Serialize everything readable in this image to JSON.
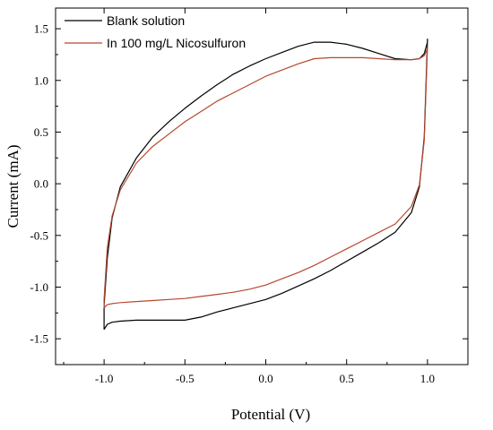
{
  "chart_data": {
    "type": "line",
    "title": "",
    "xlabel": "Potential (V)",
    "ylabel": "Current (mA)",
    "xlim": [
      -1.3,
      1.25
    ],
    "ylim": [
      -1.75,
      1.7
    ],
    "xticks": [
      -1.0,
      -0.5,
      0.0,
      0.5,
      1.0
    ],
    "xtick_labels": [
      "-1.0",
      "-0.5",
      "0.0",
      "0.5",
      "1.0"
    ],
    "yticks": [
      -1.5,
      -1.0,
      -0.5,
      0.0,
      0.5,
      1.0,
      1.5
    ],
    "ytick_labels": [
      "-1.5",
      "-1.0",
      "-0.5",
      "0.0",
      "0.5",
      "1.0",
      "1.5"
    ],
    "grid": false,
    "legend_position": "top-left",
    "series": [
      {
        "name": "Blank solution",
        "color": "#000000",
        "x": [
          -1.0,
          -0.98,
          -0.95,
          -0.9,
          -0.8,
          -0.7,
          -0.6,
          -0.5,
          -0.4,
          -0.3,
          -0.2,
          -0.1,
          0.0,
          0.1,
          0.2,
          0.3,
          0.4,
          0.5,
          0.6,
          0.7,
          0.8,
          0.9,
          0.95,
          0.98,
          1.0,
          1.0,
          0.98,
          0.95,
          0.9,
          0.8,
          0.7,
          0.6,
          0.5,
          0.4,
          0.3,
          0.2,
          0.1,
          0.0,
          -0.1,
          -0.2,
          -0.3,
          -0.4,
          -0.5,
          -0.6,
          -0.7,
          -0.8,
          -0.9,
          -0.95,
          -0.98,
          -1.0
        ],
        "y": [
          -1.41,
          -1.36,
          -1.34,
          -1.33,
          -1.32,
          -1.32,
          -1.32,
          -1.32,
          -1.29,
          -1.24,
          -1.2,
          -1.16,
          -1.12,
          -1.06,
          -0.99,
          -0.92,
          -0.84,
          -0.75,
          -0.66,
          -0.57,
          -0.47,
          -0.28,
          -0.03,
          0.45,
          1.4,
          1.37,
          1.26,
          1.21,
          1.2,
          1.21,
          1.26,
          1.31,
          1.35,
          1.37,
          1.37,
          1.33,
          1.27,
          1.21,
          1.14,
          1.06,
          0.96,
          0.85,
          0.73,
          0.6,
          0.45,
          0.25,
          -0.03,
          -0.33,
          -0.72,
          -1.18
        ]
      },
      {
        "name": "In 100 mg/L Nicosulfuron",
        "color": "#b5482e",
        "x": [
          -1.0,
          -0.98,
          -0.95,
          -0.9,
          -0.8,
          -0.7,
          -0.6,
          -0.5,
          -0.4,
          -0.3,
          -0.2,
          -0.1,
          0.0,
          0.1,
          0.2,
          0.3,
          0.4,
          0.5,
          0.6,
          0.7,
          0.8,
          0.9,
          0.95,
          0.98,
          1.0,
          1.0,
          0.98,
          0.95,
          0.9,
          0.8,
          0.7,
          0.6,
          0.5,
          0.4,
          0.3,
          0.2,
          0.1,
          0.0,
          -0.1,
          -0.2,
          -0.3,
          -0.4,
          -0.5,
          -0.6,
          -0.7,
          -0.8,
          -0.9,
          -0.95,
          -0.98,
          -1.0
        ],
        "y": [
          -1.2,
          -1.17,
          -1.16,
          -1.15,
          -1.14,
          -1.13,
          -1.12,
          -1.11,
          -1.09,
          -1.07,
          -1.05,
          -1.02,
          -0.98,
          -0.92,
          -0.86,
          -0.79,
          -0.71,
          -0.63,
          -0.55,
          -0.47,
          -0.39,
          -0.22,
          -0.01,
          0.42,
          1.33,
          1.31,
          1.24,
          1.21,
          1.2,
          1.2,
          1.21,
          1.22,
          1.22,
          1.22,
          1.21,
          1.16,
          1.1,
          1.04,
          0.96,
          0.88,
          0.8,
          0.7,
          0.6,
          0.48,
          0.36,
          0.2,
          -0.06,
          -0.31,
          -0.62,
          -1.12
        ]
      }
    ]
  }
}
